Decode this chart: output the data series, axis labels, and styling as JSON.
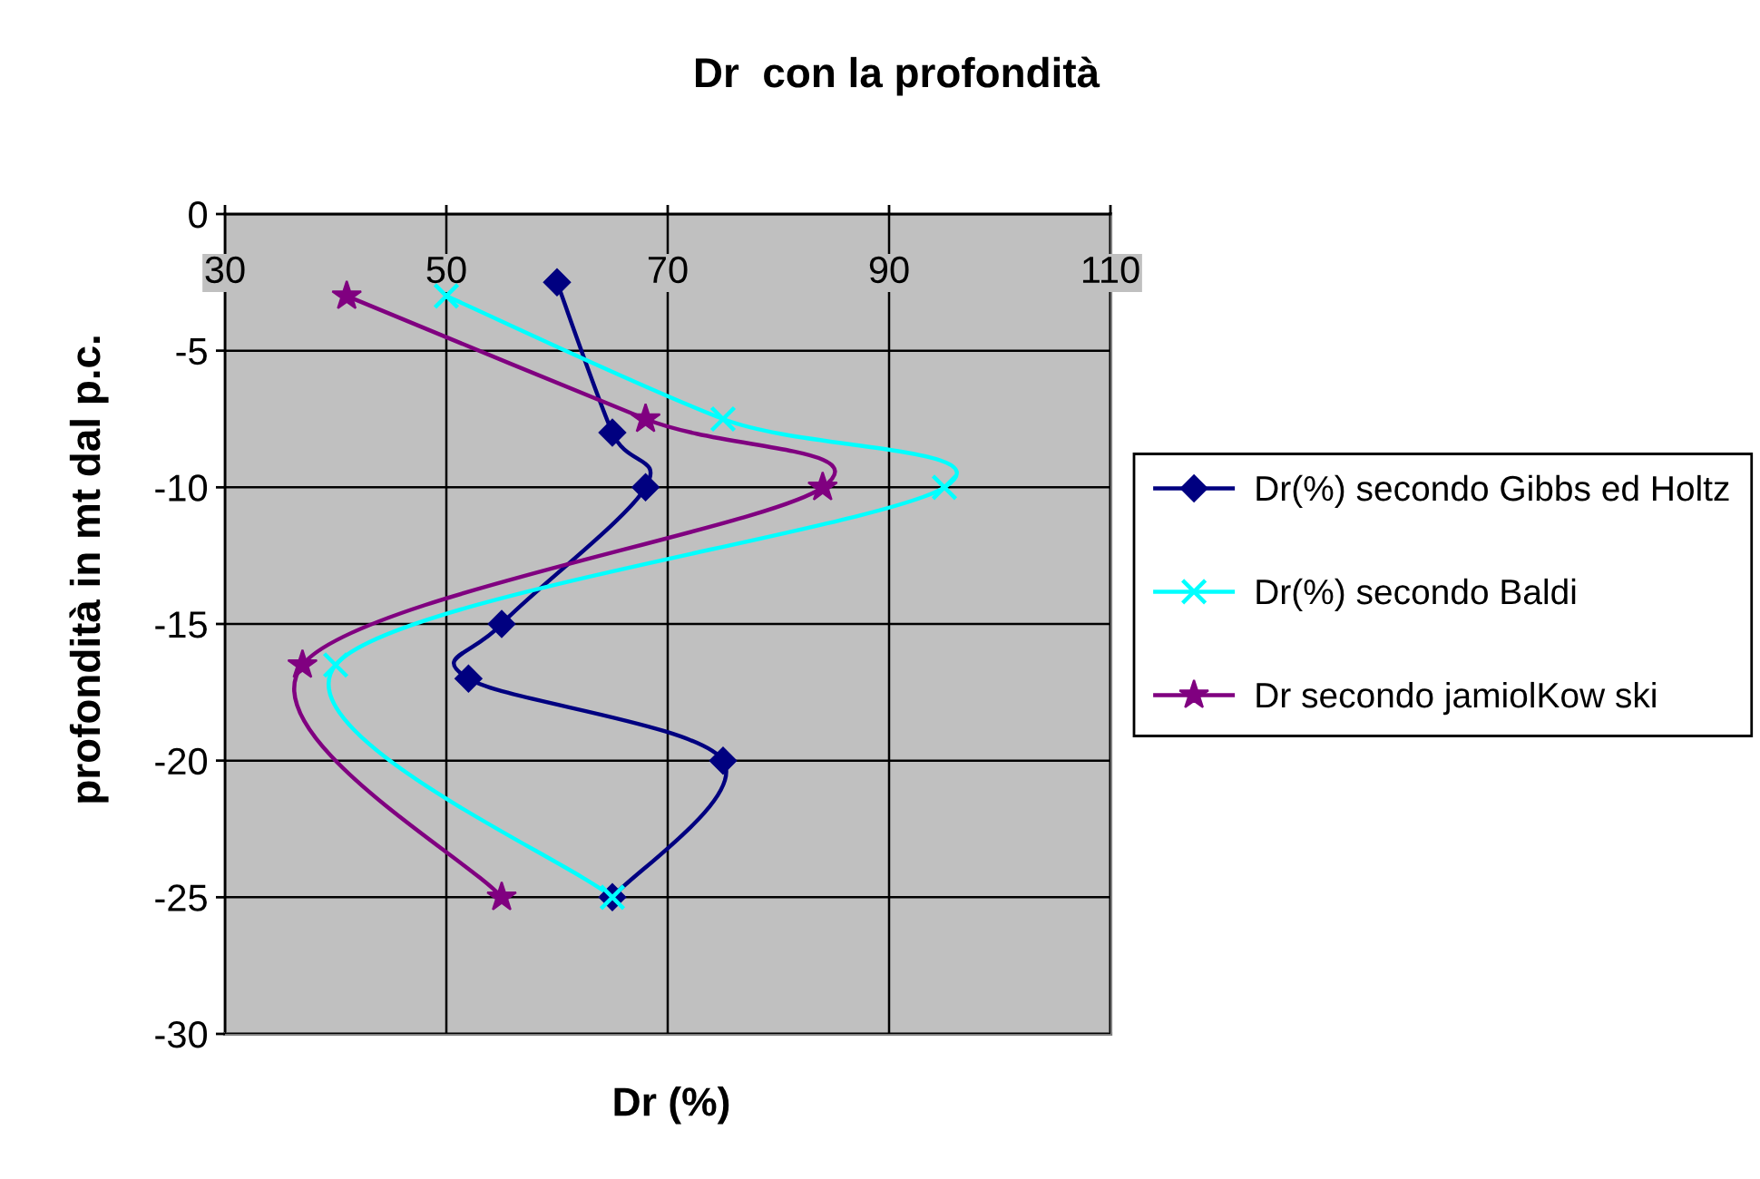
{
  "chart_data": {
    "type": "line",
    "title": "Dr  con la profondità",
    "xlabel": "Dr (%)",
    "ylabel": "profondità in mt dal p.c.",
    "series": [
      {
        "name": "Dr(%) secondo Gibbs ed Holtz",
        "color": "#000080",
        "marker": "diamond",
        "x": [
          60,
          65,
          68,
          55,
          52,
          75,
          65
        ],
        "values": [
          -2.5,
          -8,
          -10,
          -15,
          -17,
          -20,
          -25
        ]
      },
      {
        "name": "Dr(%) secondo Baldi",
        "color": "#00ffff",
        "marker": "cross",
        "x": [
          50,
          75,
          95,
          40,
          65
        ],
        "values": [
          -3,
          -7.5,
          -10,
          -16.5,
          -25
        ]
      },
      {
        "name": "Dr secondo jamiolKow ski",
        "color": "#800080",
        "marker": "star",
        "x": [
          41,
          68,
          84,
          37,
          55
        ],
        "values": [
          -3,
          -7.5,
          -10,
          -16.5,
          -25
        ]
      }
    ],
    "xlim": [
      30,
      110
    ],
    "xticks": [
      30,
      50,
      70,
      90,
      110
    ],
    "ylim": [
      -30,
      0
    ],
    "yticks": [
      0,
      -5,
      -10,
      -15,
      -20,
      -25,
      -30
    ],
    "grid": true,
    "legend": "right",
    "line_style": "solid"
  }
}
